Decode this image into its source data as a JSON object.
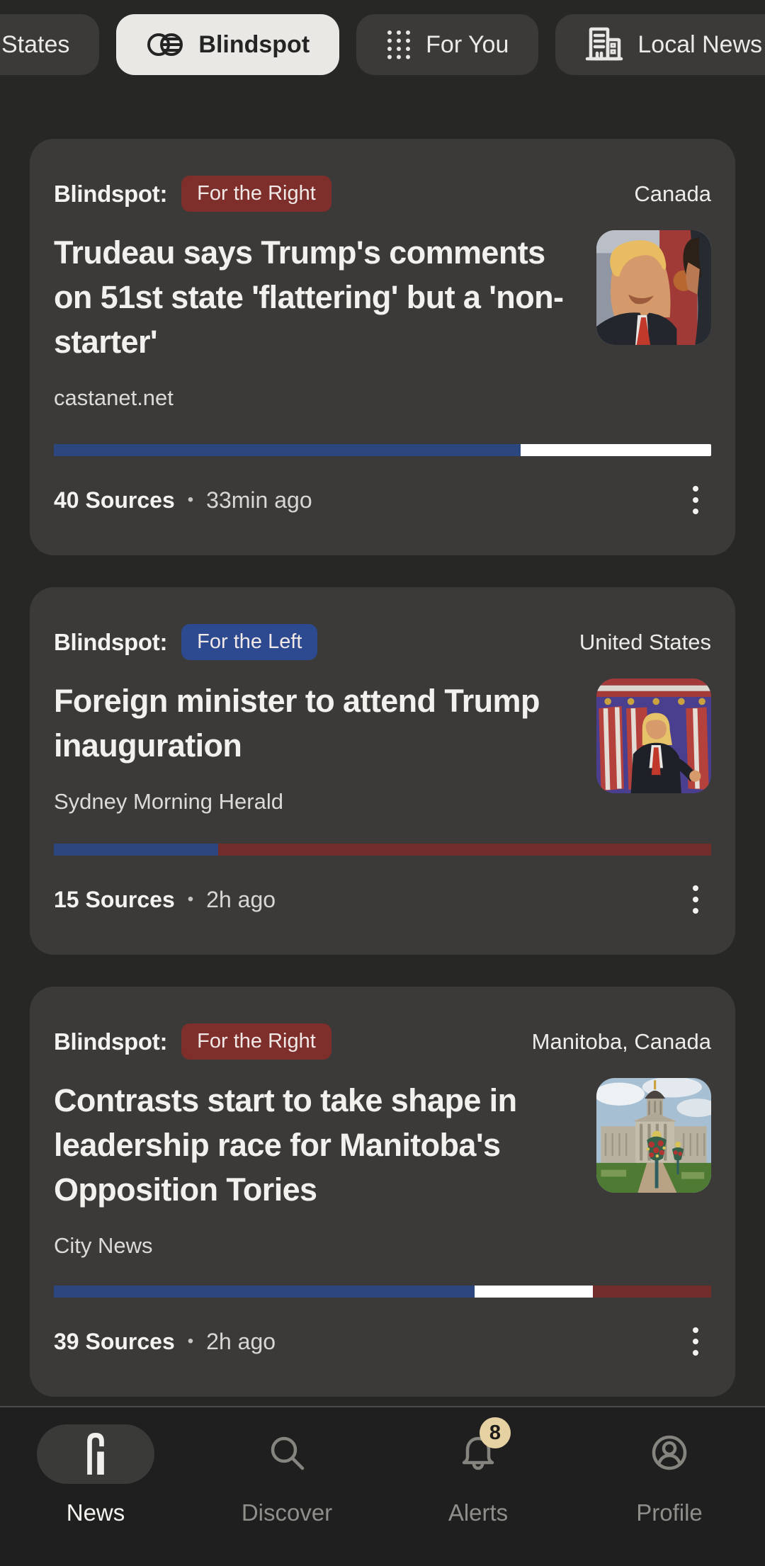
{
  "tab_bar": {
    "tabs": [
      {
        "label": "States",
        "selected": false
      },
      {
        "label": "Blindspot",
        "selected": true
      },
      {
        "label": "For You",
        "selected": false
      },
      {
        "label": "Local News",
        "selected": false
      }
    ]
  },
  "articles": [
    {
      "prefix": "Blindspot:",
      "badge": "For the Right",
      "badge_side": "right",
      "location": "Canada",
      "title": "Trudeau says Trump's comments on 51st state 'flattering' but a 'non-starter'",
      "source": "castanet.net",
      "sources_count": "40 Sources",
      "separator": "•",
      "time": "33min ago",
      "thumbnail": "trump-trudeau-photo",
      "coverage": [
        {
          "group": "left",
          "pct": 71,
          "color": "#2c4780"
        },
        {
          "group": "center",
          "pct": 29,
          "color": "#ffffff"
        }
      ]
    },
    {
      "prefix": "Blindspot:",
      "badge": "For the Left",
      "badge_side": "left",
      "location": "United States",
      "title": "Foreign minister to attend Trump inauguration",
      "source": "Sydney Morning Herald",
      "sources_count": "15 Sources",
      "separator": "•",
      "time": "2h ago",
      "thumbnail": "trump-flags-photo",
      "coverage": [
        {
          "group": "left",
          "pct": 25,
          "color": "#2c4780"
        },
        {
          "group": "right",
          "pct": 75,
          "color": "#722c2a"
        }
      ]
    },
    {
      "prefix": "Blindspot:",
      "badge": "For the Right",
      "badge_side": "right",
      "location": "Manitoba, Canada",
      "title": "Contrasts start to take shape in leadership race for Manitoba's Opposition Tories",
      "source": "City News",
      "sources_count": "39 Sources",
      "separator": "•",
      "time": "2h ago",
      "thumbnail": "manitoba-legislature-photo",
      "coverage": [
        {
          "group": "left",
          "pct": 64,
          "color": "#2c4780"
        },
        {
          "group": "center",
          "pct": 18,
          "color": "#ffffff"
        },
        {
          "group": "right",
          "pct": 18,
          "color": "#722c2a"
        }
      ]
    }
  ],
  "bottom_nav": {
    "items": [
      {
        "label": "News",
        "active": true
      },
      {
        "label": "Discover",
        "active": false
      },
      {
        "label": "Alerts",
        "active": false,
        "badge": "8"
      },
      {
        "label": "Profile",
        "active": false
      }
    ]
  },
  "colors": {
    "page_bg": "#272725",
    "card_bg": "#3b3a38",
    "nav_bg": "#201f1f",
    "tab_pill_bg": "#3b3a38",
    "tab_pill_selected_bg": "#e9e8e4",
    "badge_red": "#7e2e2b",
    "badge_blue": "#2d4a90",
    "bar_blue": "#2c4780",
    "bar_red": "#722c2a",
    "bar_white": "#ffffff",
    "alert_badge_bg": "#e5d1a1",
    "text_primary": "#f2f1ed",
    "text_secondary": "#d8d7d3",
    "nav_inactive": "#8f8e8a"
  }
}
